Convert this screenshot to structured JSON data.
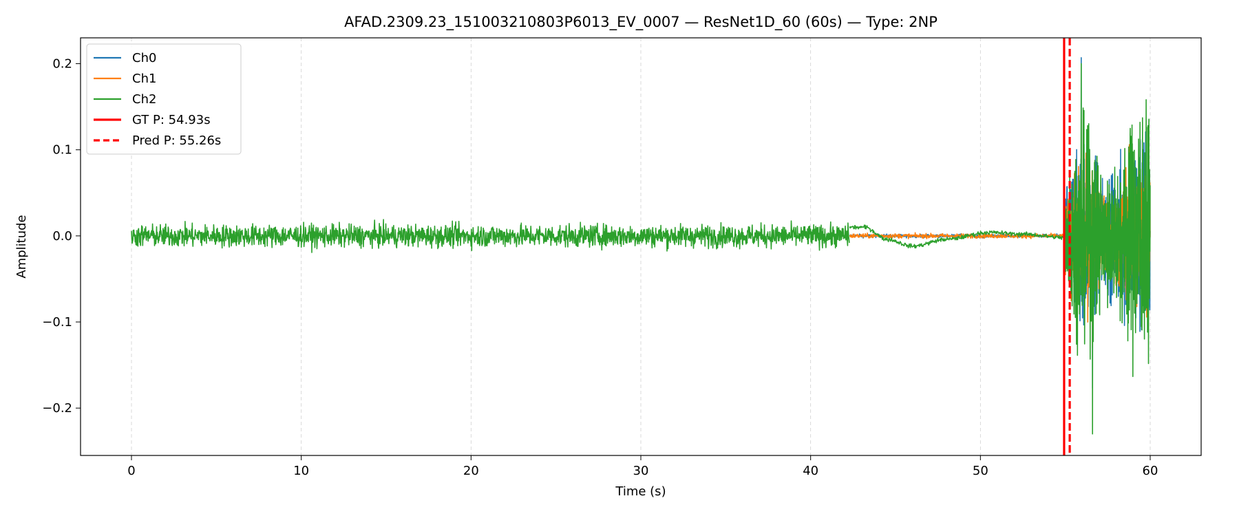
{
  "chart_data": {
    "type": "line",
    "title": "AFAD.2309.23_151003210803P6013_EV_0007 — ResNet1D_60 (60s) — Type: 2NP",
    "xlabel": "Time (s)",
    "ylabel": "Amplitude",
    "xlim": [
      -3,
      63
    ],
    "ylim": [
      -0.255,
      0.23
    ],
    "xticks": [
      0,
      10,
      20,
      30,
      40,
      50,
      60
    ],
    "xtick_labels": [
      "0",
      "10",
      "20",
      "30",
      "40",
      "50",
      "60"
    ],
    "yticks": [
      -0.2,
      -0.1,
      0.0,
      0.1,
      0.2
    ],
    "ytick_labels": [
      "−0.2",
      "−0.1",
      "0.0",
      "0.1",
      "0.2"
    ],
    "grid": "vertical dashed",
    "legend_position": "top-left",
    "series": [
      {
        "name": "Ch0",
        "color": "#1f77b4",
        "segments": [
          {
            "t_start": 42.3,
            "t_end": 54.93,
            "kind": "noise",
            "amplitude": 0.003
          },
          {
            "t_start": 54.93,
            "t_end": 60.0,
            "kind": "burst",
            "peak_max": 0.207,
            "peak_min": -0.177
          }
        ]
      },
      {
        "name": "Ch1",
        "color": "#ff7f0e",
        "segments": [
          {
            "t_start": 42.3,
            "t_end": 54.93,
            "kind": "noise",
            "amplitude": 0.004
          },
          {
            "t_start": 54.93,
            "t_end": 60.0,
            "kind": "burst",
            "peak_max": 0.135,
            "peak_min": -0.13
          }
        ]
      },
      {
        "name": "Ch2",
        "color": "#2ca02c",
        "segments": [
          {
            "t_start": 0.0,
            "t_end": 42.3,
            "kind": "noise",
            "amplitude": 0.02
          },
          {
            "t_start": 42.3,
            "t_end": 54.93,
            "kind": "drift",
            "points": [
              [
                42.3,
                0.01
              ],
              [
                43.2,
                0.01
              ],
              [
                44.5,
                -0.004
              ],
              [
                46.0,
                -0.012
              ],
              [
                48.0,
                -0.004
              ],
              [
                50.5,
                0.004
              ],
              [
                52.5,
                0.002
              ],
              [
                54.93,
                -0.002
              ]
            ]
          },
          {
            "t_start": 54.93,
            "t_end": 60.0,
            "kind": "burst",
            "peak_max": 0.2,
            "peak_min": -0.23
          }
        ]
      }
    ],
    "vlines": [
      {
        "name": "GT P: 54.93s",
        "x": 54.93,
        "color": "#ff0000",
        "style": "solid"
      },
      {
        "name": "Pred P: 55.26s",
        "x": 55.26,
        "color": "#ff0000",
        "style": "dashed"
      }
    ],
    "legend": [
      "Ch0",
      "Ch1",
      "Ch2",
      "GT P: 54.93s",
      "Pred P: 55.26s"
    ]
  }
}
